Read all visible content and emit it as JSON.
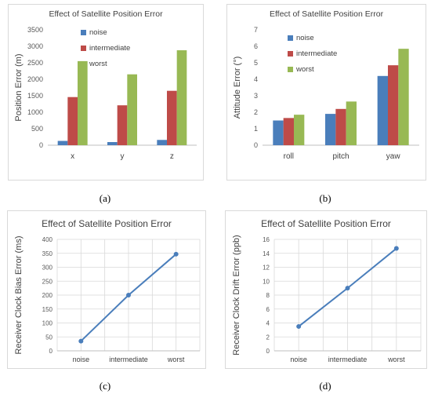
{
  "captions": [
    "(a)",
    "(b)",
    "(c)",
    "(d)"
  ],
  "colors": {
    "noise": "#4a7ebb",
    "intermediate": "#be4b48",
    "worst": "#98b954",
    "line": "#4a7ebb",
    "grid": "#d9d9d9",
    "axis_text": "#595959"
  },
  "chart_data": [
    {
      "type": "bar",
      "title": "Effect of Satellite Position Error",
      "ylabel": "Position Error (m)",
      "categories": [
        "x",
        "y",
        "z"
      ],
      "ylim": [
        0,
        3500
      ],
      "yticks": [
        0,
        500,
        1000,
        1500,
        2000,
        2500,
        3000,
        3500
      ],
      "grid": false,
      "legend": "top-left",
      "series": [
        {
          "name": "noise",
          "values": [
            130,
            95,
            160
          ]
        },
        {
          "name": "intermediate",
          "values": [
            1460,
            1210,
            1650
          ]
        },
        {
          "name": "worst",
          "values": [
            2550,
            2150,
            2880
          ]
        }
      ]
    },
    {
      "type": "bar",
      "title": "Effect of Satellite Position Error",
      "ylabel": "Attitude Error (°)",
      "categories": [
        "roll",
        "pitch",
        "yaw"
      ],
      "ylim": [
        0,
        7
      ],
      "yticks": [
        0,
        1,
        2,
        3,
        4,
        5,
        6,
        7
      ],
      "grid": false,
      "legend": "top-left",
      "series": [
        {
          "name": "noise",
          "values": [
            1.5,
            1.9,
            4.2
          ]
        },
        {
          "name": "intermediate",
          "values": [
            1.65,
            2.2,
            4.85
          ]
        },
        {
          "name": "worst",
          "values": [
            1.85,
            2.65,
            5.85
          ]
        }
      ]
    },
    {
      "type": "line",
      "title": "Effect of  Satellite Position Error",
      "ylabel": "Receiver Clock Bias Error (ms)",
      "categories": [
        "noise",
        "intermediate",
        "worst"
      ],
      "ylim": [
        0,
        400
      ],
      "yticks": [
        0,
        50,
        100,
        150,
        200,
        250,
        300,
        350,
        400
      ],
      "grid": true,
      "series": [
        {
          "values": [
            35,
            200,
            347
          ]
        }
      ]
    },
    {
      "type": "line",
      "title": "Effect of  Satellite Position Error",
      "ylabel": "Receiver Clock Drift Error (ppb)",
      "categories": [
        "noise",
        "intermediate",
        "worst"
      ],
      "ylim": [
        0,
        16
      ],
      "yticks": [
        0,
        2,
        4,
        6,
        8,
        10,
        12,
        14,
        16
      ],
      "grid": true,
      "series": [
        {
          "values": [
            3.5,
            9.0,
            14.7
          ]
        }
      ]
    }
  ]
}
